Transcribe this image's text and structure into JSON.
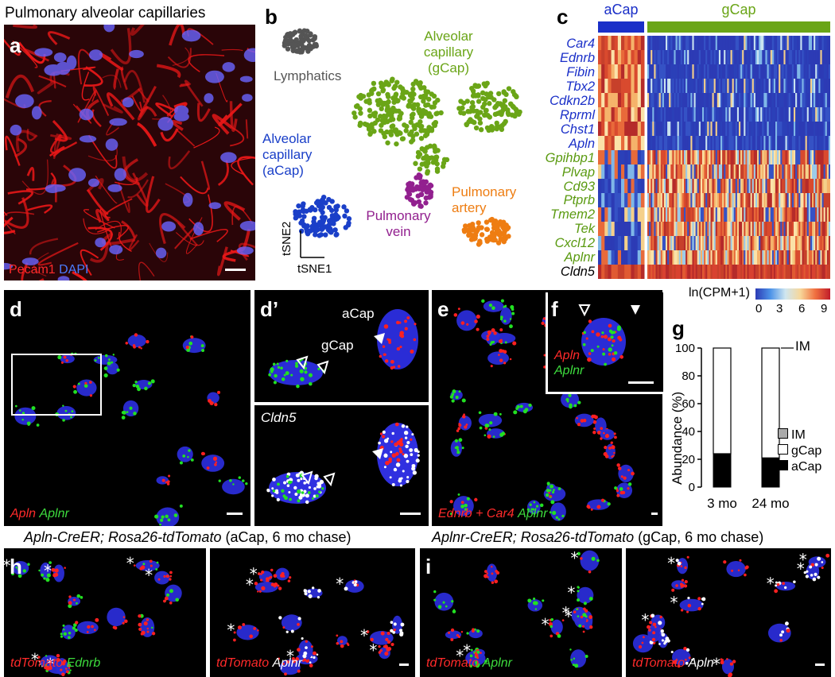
{
  "panel_a": {
    "letter": "a",
    "title": "Pulmonary alveolar capillaries",
    "stain_1": "Pecam1",
    "stain_2": "DAPI"
  },
  "panel_b": {
    "letter": "b",
    "clusters": {
      "lymphatics": "Lymphatics",
      "gcap_line1": "Alveolar",
      "gcap_line2": "capillary",
      "gcap_line3": "(gCap)",
      "acap_line1": "Alveolar",
      "acap_line2": "capillary",
      "acap_line3": "(aCap)",
      "vein_line1": "Pulmonary",
      "vein_line2": "vein",
      "artery_line1": "Pulmonary",
      "artery_line2": "artery"
    },
    "axis_x": "tSNE1",
    "axis_y": "tSNE2",
    "colors": {
      "lymphatics": "#555555",
      "gcap": "#6aa517",
      "acap": "#1a3fc8",
      "vein": "#92208f",
      "artery": "#ee7d12"
    }
  },
  "panel_c": {
    "letter": "c",
    "group_acap": "aCap",
    "group_gcap": "gCap",
    "genes_acap": [
      "Car4",
      "Ednrb",
      "Fibin",
      "Tbx2",
      "Cdkn2b",
      "Rprml",
      "Chst1",
      "Apln"
    ],
    "genes_gcap": [
      "Gpihbp1",
      "Plvap",
      "Cd93",
      "Ptprb",
      "Tmem2",
      "Tek",
      "Cxcl12",
      "Aplnr"
    ],
    "genes_common": [
      "Cldn5"
    ],
    "colorbar_label": "ln(CPM+1)",
    "colorbar_ticks": [
      "0",
      "3",
      "6",
      "9"
    ]
  },
  "panel_d": {
    "letter": "d",
    "stain_1": "Apln",
    "stain_2": "Aplnr"
  },
  "panel_d2": {
    "letter": "d’",
    "label_acap": "aCap",
    "label_gcap": "gCap",
    "bottom_title": "Cldn5"
  },
  "panel_e": {
    "letter": "e",
    "stain_1": "Ednrb + Car4",
    "stain_2": "Aplnr"
  },
  "panel_f": {
    "letter": "f",
    "stain_1": "Apln",
    "stain_2": "Aplnr"
  },
  "panel_g": {
    "letter": "g",
    "chart_data": {
      "type": "bar",
      "categories": [
        "3 mo",
        "24 mo"
      ],
      "series": [
        {
          "name": "aCap",
          "values": [
            24,
            21
          ]
        },
        {
          "name": "gCap",
          "values": [
            76,
            79
          ]
        },
        {
          "name": "IM",
          "values": [
            0,
            0
          ]
        }
      ],
      "ylabel": "Abundance (%)",
      "ylim": [
        0,
        100
      ],
      "yticks": [
        "0",
        "20",
        "40",
        "60",
        "80",
        "100"
      ],
      "annotation": "IM",
      "legend": [
        "IM",
        "gCap",
        "aCap"
      ]
    }
  },
  "panel_h": {
    "letter": "h",
    "title_genotype": "Apln-CreER; Rosa26-tdTomato",
    "title_note": "(aCap, 6 mo chase)",
    "left_stain_1": "tdTomato",
    "left_stain_2": "Ednrb",
    "right_stain_1": "tdTomato",
    "right_stain_2": "Aplnr"
  },
  "panel_i": {
    "letter": "i",
    "title_genotype": "Aplnr-CreER; Rosa26-tdTomato",
    "title_note": "(gCap, 6 mo chase)",
    "left_stain_1": "tdTomato",
    "left_stain_2": "Aplnr",
    "right_stain_1": "tdTomato",
    "right_stain_2": "Apln"
  }
}
